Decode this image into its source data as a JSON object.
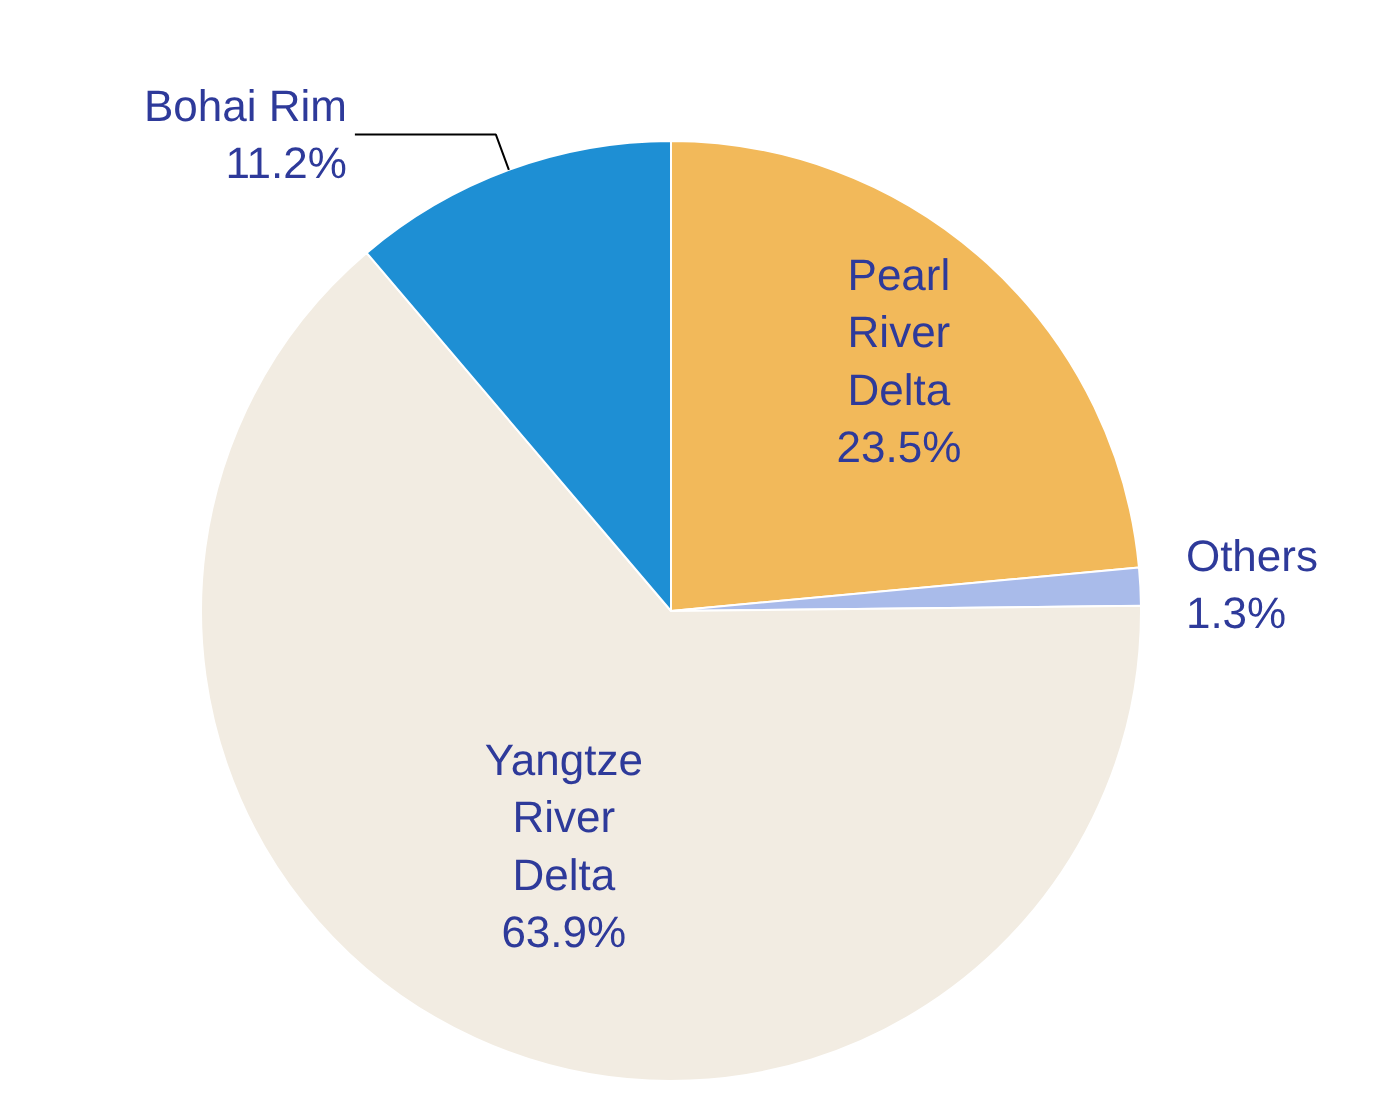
{
  "chart_data": {
    "type": "pie",
    "categories": [
      "Pearl River Delta",
      "Others",
      "Yangtze River Delta",
      "Bohai Rim"
    ],
    "values": [
      23.5,
      1.3,
      63.9,
      11.2
    ],
    "value_labels": [
      "23.5%",
      "1.3%",
      "63.9%",
      "11.2%"
    ],
    "colors": [
      "#f2b95a",
      "#a9bbea",
      "#f2ece2",
      "#1e8fd4"
    ]
  }
}
